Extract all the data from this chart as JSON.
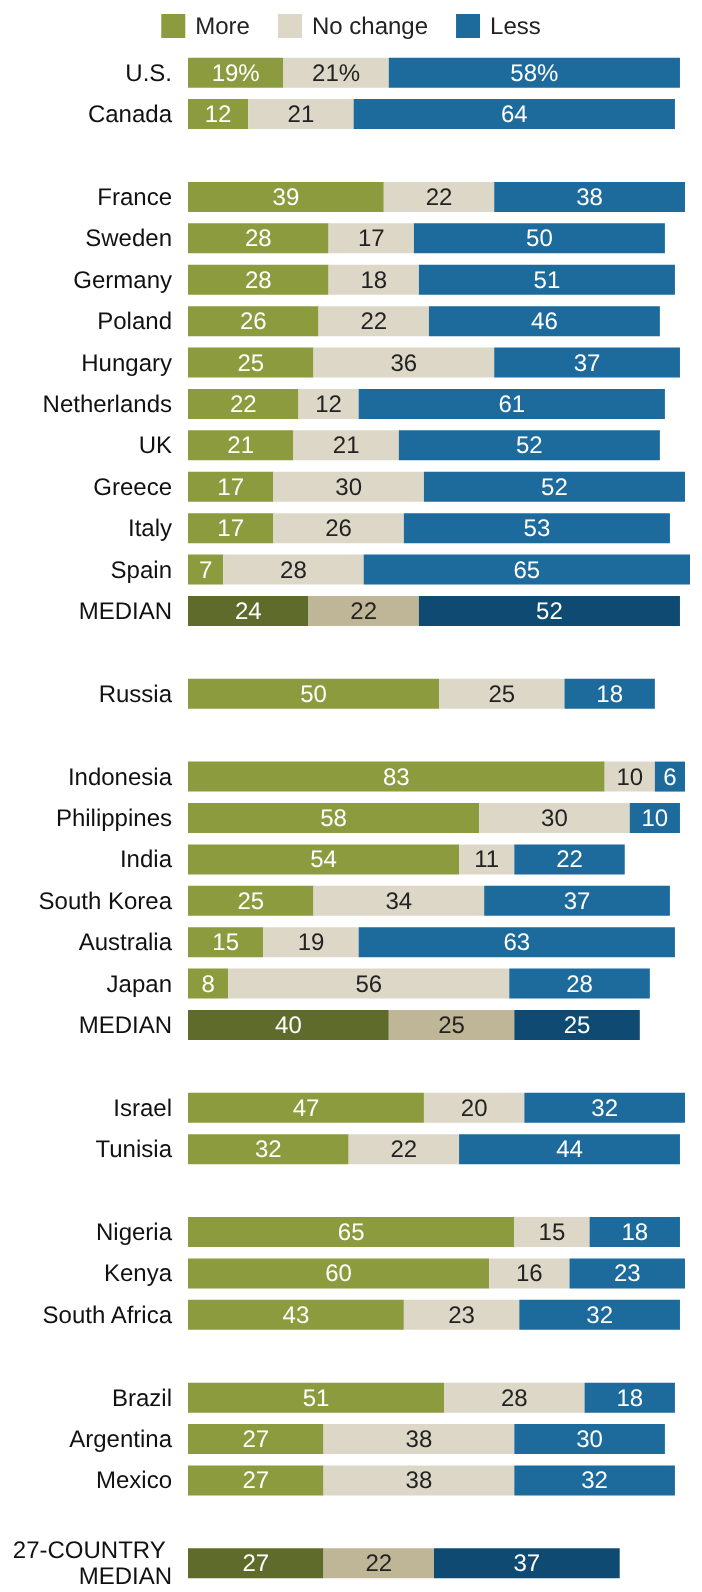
{
  "chart_data": {
    "type": "bar",
    "orientation": "horizontal",
    "stacked": true,
    "legend": "top",
    "categories": [
      "U.S.",
      "Canada",
      null,
      "France",
      "Sweden",
      "Germany",
      "Poland",
      "Hungary",
      "Netherlands",
      "UK",
      "Greece",
      "Italy",
      "Spain",
      "MEDIAN",
      null,
      "Russia",
      null,
      "Indonesia",
      "Philippines",
      "India",
      "South Korea",
      "Australia",
      "Japan",
      "MEDIAN",
      null,
      "Israel",
      "Tunisia",
      null,
      "Nigeria",
      "Kenya",
      "South Africa",
      null,
      "Brazil",
      "Argentina",
      "Mexico",
      null,
      "27-COUNTRY MEDIAN"
    ],
    "series": [
      {
        "name": "More",
        "color": "#8c9b3e",
        "colors": [
          "#8c9b3e",
          "#8c9b3e",
          null,
          "#8c9b3e",
          "#8c9b3e",
          "#8c9b3e",
          "#8c9b3e",
          "#8c9b3e",
          "#8c9b3e",
          "#8c9b3e",
          "#8c9b3e",
          "#8c9b3e",
          "#8c9b3e",
          "#5f6b2a",
          null,
          "#8c9b3e",
          null,
          "#8c9b3e",
          "#8c9b3e",
          "#8c9b3e",
          "#8c9b3e",
          "#8c9b3e",
          "#8c9b3e",
          "#5f6b2a",
          null,
          "#8c9b3e",
          "#8c9b3e",
          null,
          "#8c9b3e",
          "#8c9b3e",
          "#8c9b3e",
          null,
          "#8c9b3e",
          "#8c9b3e",
          "#8c9b3e",
          null,
          "#5f6b2a"
        ],
        "values": [
          19,
          12,
          null,
          39,
          28,
          28,
          26,
          25,
          22,
          21,
          17,
          17,
          7,
          24,
          null,
          50,
          null,
          83,
          58,
          54,
          25,
          15,
          8,
          40,
          null,
          47,
          32,
          null,
          65,
          60,
          43,
          null,
          51,
          27,
          27,
          null,
          27
        ],
        "value_labels": [
          "19%",
          "12",
          null,
          "39",
          "28",
          "28",
          "26",
          "25",
          "22",
          "21",
          "17",
          "17",
          "7",
          "24",
          null,
          "50",
          null,
          "83",
          "58",
          "54",
          "25",
          "15",
          "8",
          "40",
          null,
          "47",
          "32",
          null,
          "65",
          "60",
          "43",
          null,
          "51",
          "27",
          "27",
          null,
          "27"
        ]
      },
      {
        "name": "No change",
        "color": "#dcd7c6",
        "colors": [
          "#dcd7c6",
          "#dcd7c6",
          null,
          "#dcd7c6",
          "#dcd7c6",
          "#dcd7c6",
          "#dcd7c6",
          "#dcd7c6",
          "#dcd7c6",
          "#dcd7c6",
          "#dcd7c6",
          "#dcd7c6",
          "#dcd7c6",
          "#bfb597",
          null,
          "#dcd7c6",
          null,
          "#dcd7c6",
          "#dcd7c6",
          "#dcd7c6",
          "#dcd7c6",
          "#dcd7c6",
          "#dcd7c6",
          "#bfb597",
          null,
          "#dcd7c6",
          "#dcd7c6",
          null,
          "#dcd7c6",
          "#dcd7c6",
          "#dcd7c6",
          null,
          "#dcd7c6",
          "#dcd7c6",
          "#dcd7c6",
          null,
          "#bfb597"
        ],
        "values": [
          21,
          21,
          null,
          22,
          17,
          18,
          22,
          36,
          12,
          21,
          30,
          26,
          28,
          22,
          null,
          25,
          null,
          10,
          30,
          11,
          34,
          19,
          56,
          25,
          null,
          20,
          22,
          null,
          15,
          16,
          23,
          null,
          28,
          38,
          38,
          null,
          22
        ],
        "value_labels": [
          "21%",
          "21",
          null,
          "22",
          "17",
          "18",
          "22",
          "36",
          "12",
          "21",
          "30",
          "26",
          "28",
          "22",
          null,
          "25",
          null,
          "10",
          "30",
          "11",
          "34",
          "19",
          "56",
          "25",
          null,
          "20",
          "22",
          null,
          "15",
          "16",
          "23",
          null,
          "28",
          "38",
          "38",
          null,
          "22"
        ]
      },
      {
        "name": "Less",
        "color": "#1d6a9c",
        "colors": [
          "#1d6a9c",
          "#1d6a9c",
          null,
          "#1d6a9c",
          "#1d6a9c",
          "#1d6a9c",
          "#1d6a9c",
          "#1d6a9c",
          "#1d6a9c",
          "#1d6a9c",
          "#1d6a9c",
          "#1d6a9c",
          "#1d6a9c",
          "#0f4a73",
          null,
          "#1d6a9c",
          null,
          "#1d6a9c",
          "#1d6a9c",
          "#1d6a9c",
          "#1d6a9c",
          "#1d6a9c",
          "#1d6a9c",
          "#0f4a73",
          null,
          "#1d6a9c",
          "#1d6a9c",
          null,
          "#1d6a9c",
          "#1d6a9c",
          "#1d6a9c",
          null,
          "#1d6a9c",
          "#1d6a9c",
          "#1d6a9c",
          null,
          "#0f4a73"
        ],
        "values": [
          58,
          64,
          null,
          38,
          50,
          51,
          46,
          37,
          61,
          52,
          52,
          53,
          65,
          52,
          null,
          18,
          null,
          6,
          10,
          22,
          37,
          63,
          28,
          25,
          null,
          32,
          44,
          null,
          18,
          23,
          32,
          null,
          18,
          30,
          32,
          null,
          37
        ],
        "value_labels": [
          "58%",
          "64",
          null,
          "38",
          "50",
          "51",
          "46",
          "37",
          "61",
          "52",
          "52",
          "53",
          "65",
          "52",
          null,
          "18",
          null,
          "6",
          "10",
          "22",
          "37",
          "63",
          "28",
          "25",
          null,
          "32",
          "44",
          null,
          "18",
          "23",
          "32",
          null,
          "18",
          "30",
          "32",
          null,
          "37"
        ]
      }
    ]
  }
}
